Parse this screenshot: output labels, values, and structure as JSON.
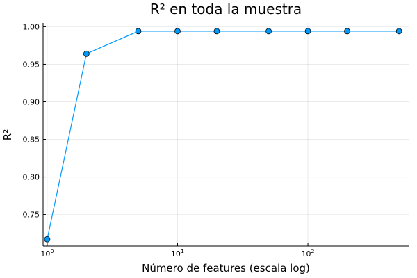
{
  "chart_data": {
    "type": "line",
    "title": "R² en toda la muestra",
    "xlabel": "Número de features (escala log)",
    "ylabel": "R²",
    "xscale": "log",
    "xlim": [
      0.93,
      600
    ],
    "ylim": [
      0.708,
      1.005
    ],
    "grid": true,
    "legend": "none",
    "x_ticks": [
      {
        "value": 1,
        "base": "10",
        "exp": "0"
      },
      {
        "value": 10,
        "base": "10",
        "exp": "1"
      },
      {
        "value": 100,
        "base": "10",
        "exp": "2"
      }
    ],
    "y_ticks": [
      {
        "value": 0.75,
        "label": "0.75"
      },
      {
        "value": 0.8,
        "label": "0.80"
      },
      {
        "value": 0.85,
        "label": "0.85"
      },
      {
        "value": 0.9,
        "label": "0.90"
      },
      {
        "value": 0.95,
        "label": "0.95"
      },
      {
        "value": 1.0,
        "label": "1.00"
      }
    ],
    "series": [
      {
        "color": "#009AFA",
        "x": [
          1,
          2,
          5,
          10,
          20,
          50,
          100,
          200,
          500
        ],
        "y": [
          0.717,
          0.964,
          0.994,
          0.994,
          0.994,
          0.994,
          0.994,
          0.994,
          0.994
        ]
      }
    ]
  }
}
